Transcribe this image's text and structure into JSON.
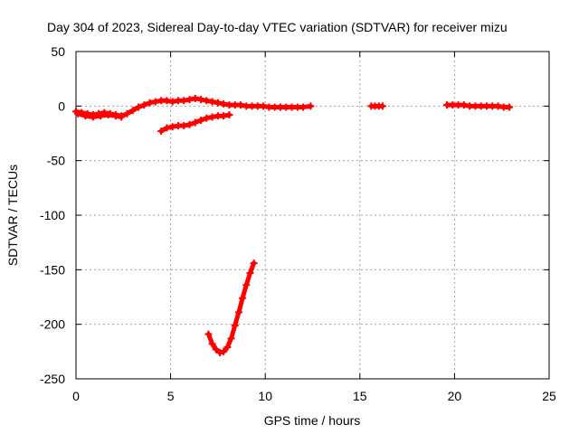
{
  "chart_data": {
    "type": "scatter",
    "title": "Day 304 of 2023, Sidereal Day-to-day VTEC variation (SDTVAR) for receiver mizu",
    "xlabel": "GPS time / hours",
    "ylabel": "SDTVAR / TECUs",
    "xlim": [
      0,
      25
    ],
    "ylim": [
      -250,
      50
    ],
    "xticks": [
      0,
      5,
      10,
      15,
      20,
      25
    ],
    "yticks": [
      -250,
      -200,
      -150,
      -100,
      -50,
      0,
      50
    ],
    "grid": true,
    "marker": "plus",
    "series": [
      {
        "name": "SDTVAR",
        "color": "#ff0000",
        "segments": [
          {
            "x": [
              0.0,
              0.3,
              0.6,
              0.9,
              1.2,
              1.5,
              1.8,
              2.1,
              2.4,
              2.7,
              3.0,
              3.3,
              3.6,
              3.9,
              4.2,
              4.5,
              4.8,
              5.1,
              5.4,
              5.7,
              6.0,
              6.3,
              6.6,
              6.9,
              7.2,
              7.5,
              7.8,
              8.1,
              8.4,
              8.7,
              9.0,
              9.3,
              9.6,
              9.9,
              10.2,
              10.5,
              10.8,
              11.1,
              11.4,
              11.7,
              12.0,
              12.4
            ],
            "y": [
              -5,
              -6,
              -7,
              -8,
              -7,
              -6,
              -7,
              -8,
              -9,
              -7,
              -4,
              -1,
              1,
              3,
              4,
              5,
              5,
              4,
              5,
              5,
              6,
              7,
              6,
              5,
              4,
              3,
              2,
              1,
              1,
              1,
              0,
              0,
              0,
              0,
              -1,
              -1,
              -1,
              -1,
              -1,
              -1,
              -1,
              0
            ]
          },
          {
            "x": [
              0.1,
              0.5,
              0.9,
              1.3,
              1.7,
              2.1,
              2.4
            ],
            "y": [
              -7,
              -9,
              -10,
              -9,
              -8,
              -9,
              -10
            ]
          },
          {
            "x": [
              4.5,
              4.8,
              5.1,
              5.4,
              5.7,
              6.0,
              6.3,
              6.6,
              6.9,
              7.2,
              7.5,
              7.8,
              8.1
            ],
            "y": [
              -23,
              -20,
              -19,
              -18,
              -18,
              -17,
              -15,
              -13,
              -11,
              -10,
              -9,
              -9,
              -8
            ]
          },
          {
            "x": [
              7.0,
              7.2,
              7.4,
              7.6,
              7.8,
              8.0,
              8.2,
              8.4,
              8.6,
              8.8,
              9.0,
              9.2,
              9.4
            ],
            "y": [
              -209,
              -218,
              -223,
              -226,
              -225,
              -221,
              -213,
              -201,
              -189,
              -176,
              -164,
              -153,
              -144
            ]
          },
          {
            "x": [
              15.6,
              15.8,
              16.0,
              16.2
            ],
            "y": [
              0,
              0,
              0,
              0
            ]
          },
          {
            "x": [
              19.6,
              19.9,
              20.2,
              20.5,
              20.8,
              21.1,
              21.4,
              21.7,
              22.0,
              22.3,
              22.6,
              22.9
            ],
            "y": [
              1,
              1,
              1,
              1,
              0,
              0,
              0,
              0,
              0,
              0,
              -1,
              -1
            ]
          }
        ]
      }
    ]
  }
}
